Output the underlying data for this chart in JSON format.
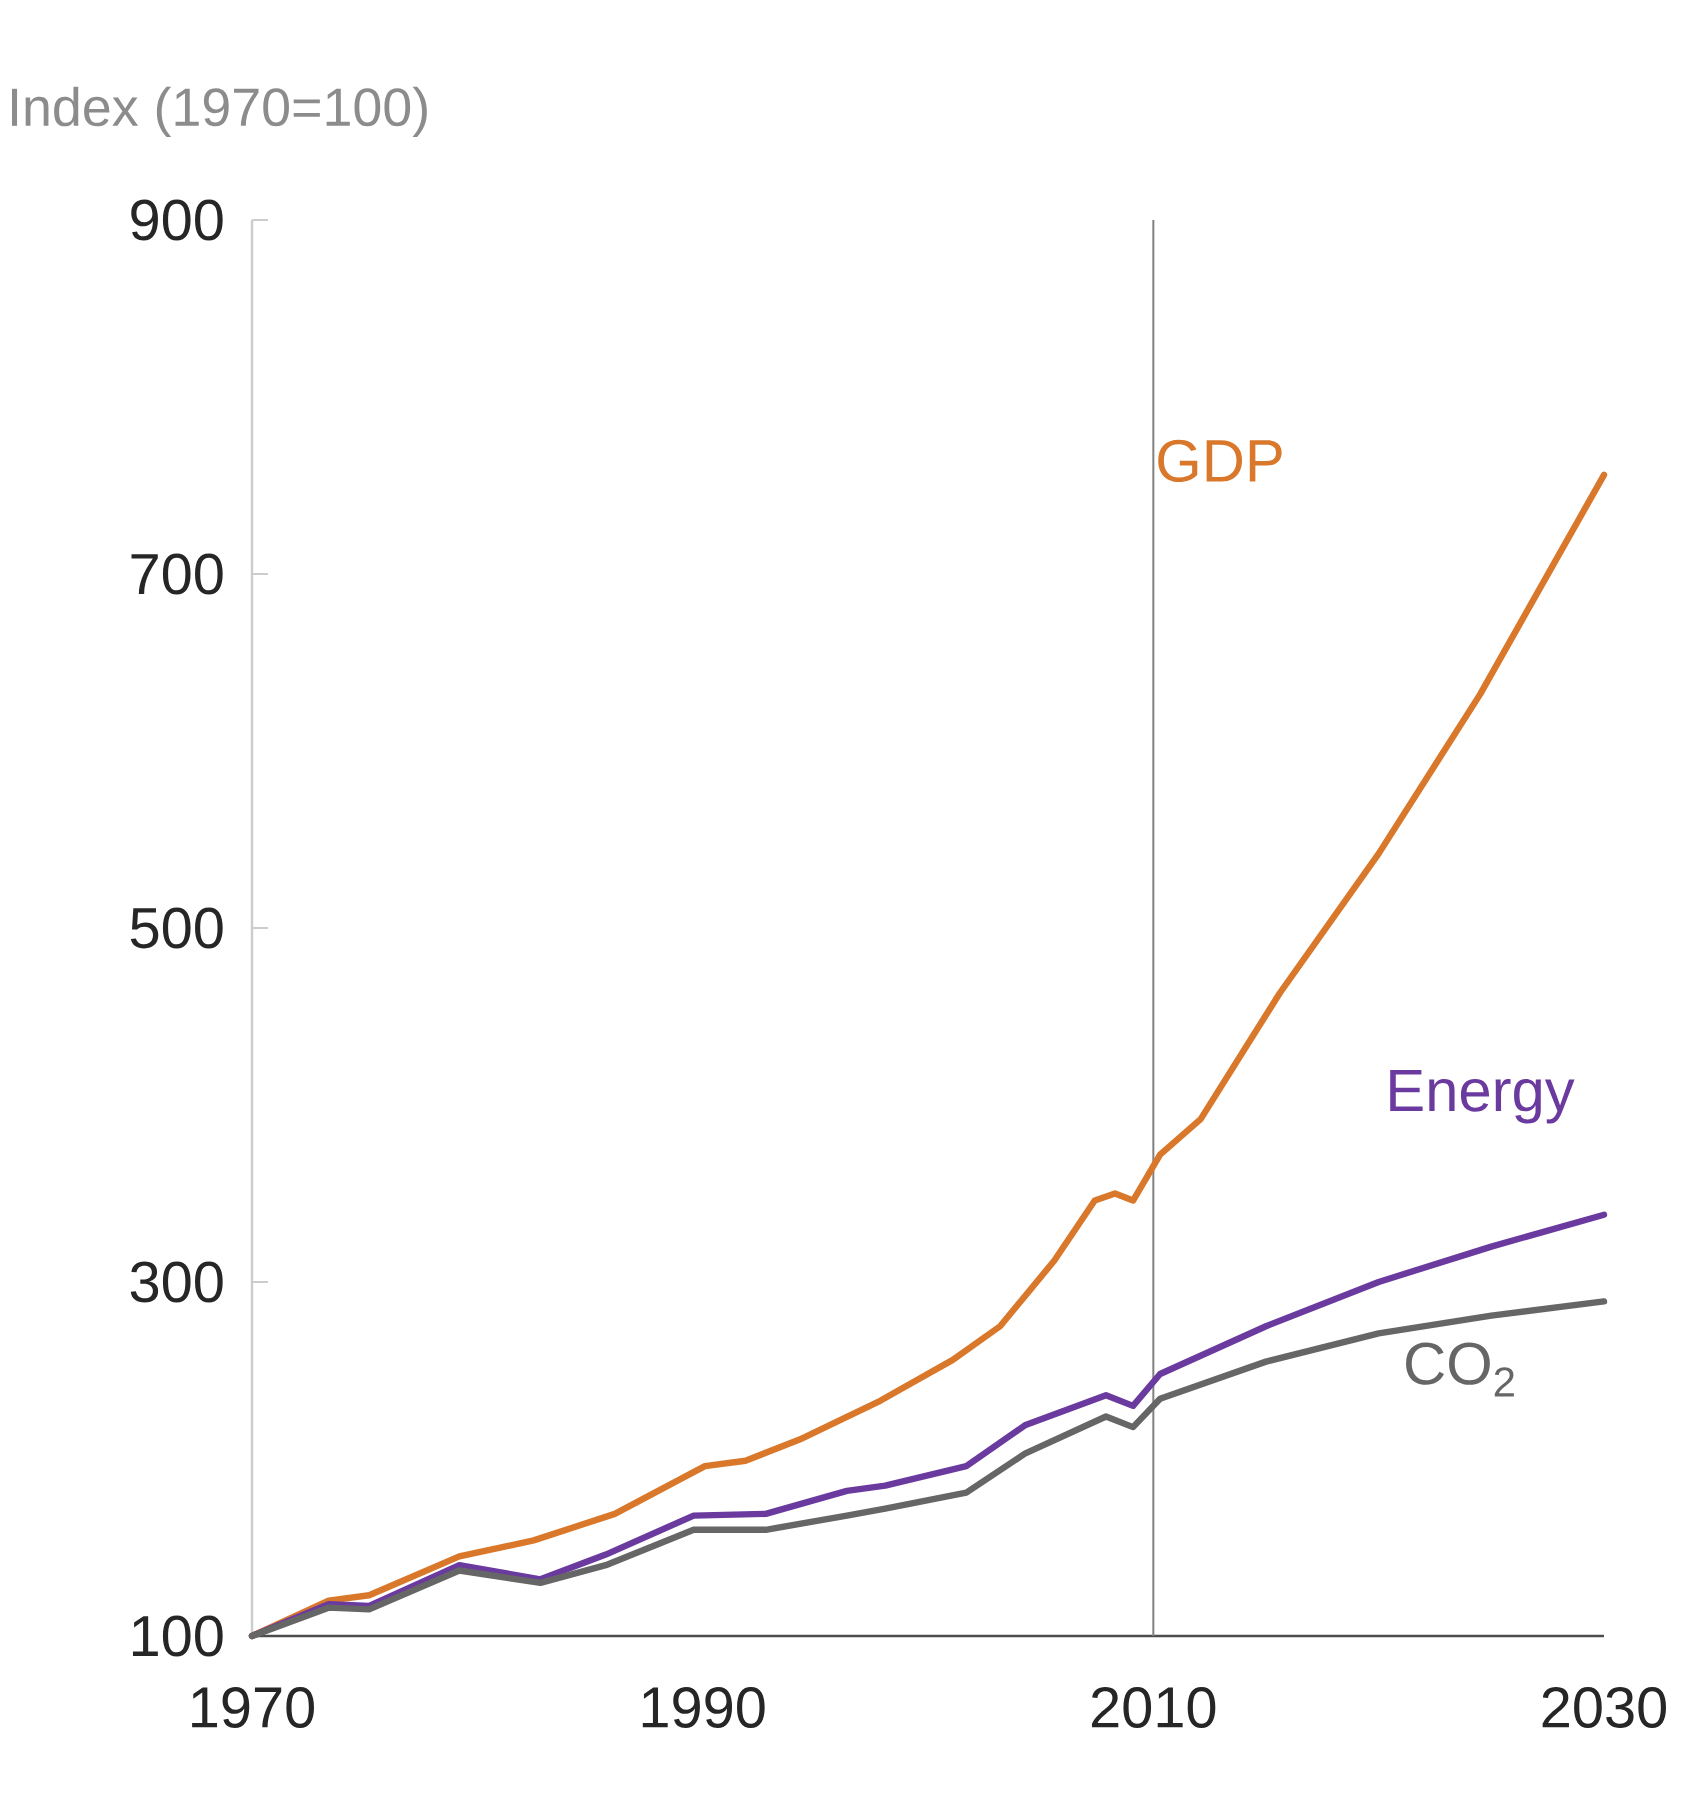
{
  "chart_data": {
    "type": "line",
    "ylabel": "Index (1970=100)",
    "xlim": [
      1970,
      2030
    ],
    "ylim": [
      100,
      900
    ],
    "xticks": [
      1970,
      1990,
      2010,
      2030
    ],
    "yticks": [
      100,
      300,
      500,
      700,
      900
    ],
    "line_style": "solid",
    "ref_lines": [
      {
        "axis": "x",
        "value": 2010,
        "color": "#808080"
      }
    ],
    "series": [
      {
        "name": "GDP",
        "color": "#d9782b",
        "x": [
          1970,
          1973.4,
          1975.2,
          1979.2,
          1982.5,
          1986.1,
          1990.1,
          1991.9,
          1994.3,
          1997.9,
          1999,
          2001.1,
          2003.2,
          2005.6,
          2007.4,
          2008.3,
          2009.1,
          2010.3,
          2012.1,
          2015.6,
          2020,
          2024.5,
          2030
        ],
        "values": [
          100,
          120,
          123,
          145,
          154,
          169,
          196,
          199,
          211,
          233,
          241,
          256,
          275,
          312,
          346,
          350,
          346,
          372,
          392,
          463,
          542,
          632,
          756
        ]
      },
      {
        "name": "Energy",
        "color": "#6b3a9f",
        "x": [
          1970,
          1973.4,
          1975.2,
          1979.2,
          1982.8,
          1985.7,
          1989.6,
          1992.8,
          1996.4,
          1998.1,
          2001.7,
          2004.3,
          2007.9,
          2009.1,
          2010.3,
          2015,
          2020,
          2025,
          2030
        ],
        "values": [
          100,
          118,
          117,
          140,
          132,
          146,
          168,
          169,
          182,
          185,
          196,
          219,
          236,
          230,
          248,
          275,
          300,
          320,
          338
        ]
      },
      {
        "name": "CO$_{2}$",
        "color": "#666666",
        "x": [
          1970,
          1973.4,
          1975.2,
          1979.2,
          1982.8,
          1985.7,
          1989.6,
          1992.8,
          1996.4,
          1998.1,
          2001.7,
          2004.3,
          2007.9,
          2009.1,
          2010.3,
          2015,
          2020,
          2025,
          2030
        ],
        "values": [
          100,
          116,
          115,
          137,
          130,
          140,
          160,
          160,
          168,
          172,
          181,
          203,
          224,
          218,
          234,
          255,
          271,
          281,
          289
        ]
      }
    ]
  }
}
